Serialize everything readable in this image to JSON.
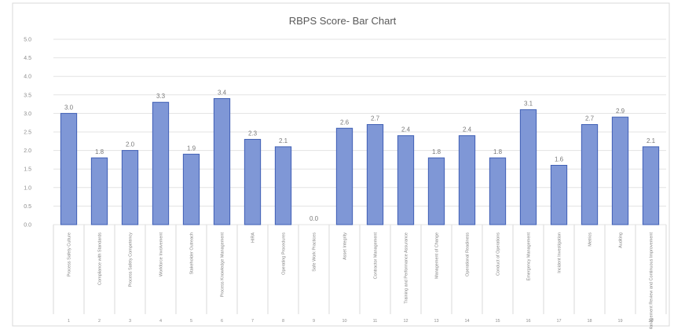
{
  "chart_data": {
    "type": "bar",
    "title": "RBPS Score- Bar Chart",
    "xlabel": "",
    "ylabel": "",
    "ylim": [
      0,
      5.0
    ],
    "yticks": [
      "0.0",
      "0.5",
      "1.0",
      "1.5",
      "2.0",
      "2.5",
      "3.0",
      "3.5",
      "4.0",
      "4.5",
      "5.0"
    ],
    "grid": true,
    "categories": [
      "Process Safety Culture",
      "Compliance with Standards",
      "Process Safety Competency",
      "Workforce Involvement",
      "Stakeholder Outreach",
      "Process Knowledge Management",
      "HIRA",
      "Operating Procedures",
      "Safe Work Practices",
      "Asset Integrity",
      "Contractor Management",
      "Training and Performance Assurance",
      "Management of Change",
      "Operational Readiness",
      "Conduct of Operations",
      "Emergency Management",
      "Incident Investigation",
      "Metrics",
      "Auditing",
      "Management Review and Continuous Improvement"
    ],
    "indices": [
      "1",
      "2",
      "3",
      "4",
      "5",
      "6",
      "7",
      "8",
      "9",
      "10",
      "11",
      "12",
      "13",
      "14",
      "15",
      "16",
      "17",
      "18",
      "19",
      "20"
    ],
    "values": [
      3.0,
      1.8,
      2.0,
      3.3,
      1.9,
      3.4,
      2.3,
      2.1,
      0.0,
      2.6,
      2.7,
      2.4,
      1.8,
      2.4,
      1.8,
      3.1,
      1.6,
      2.7,
      2.9,
      2.1
    ],
    "value_labels": [
      "3.0",
      "1.8",
      "2.0",
      "3.3",
      "1.9",
      "3.4",
      "2.3",
      "2.1",
      "0.0",
      "2.6",
      "2.7",
      "2.4",
      "1.8",
      "2.4",
      "1.8",
      "3.1",
      "1.6",
      "2.7",
      "2.9",
      "2.1"
    ]
  },
  "colors": {
    "bar_fill": "#7f97d6",
    "bar_stroke": "#3f5fb5",
    "grid": "#e3e3e3",
    "text": "#595959"
  }
}
